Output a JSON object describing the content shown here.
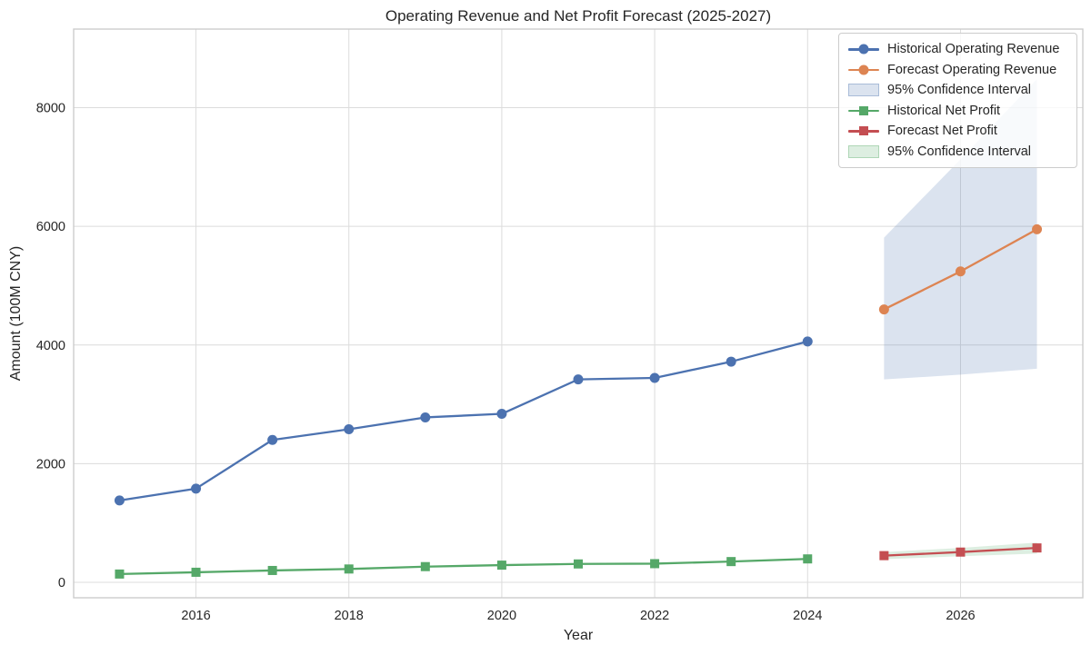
{
  "chart_data": {
    "type": "line",
    "title": "Operating Revenue and Net Profit Forecast (2025-2027)",
    "xlabel": "Year",
    "ylabel": "Amount (100M CNY)",
    "x_ticks": [
      "2016",
      "2018",
      "2020",
      "2022",
      "2024",
      "2026"
    ],
    "x_tick_values": [
      2016,
      2018,
      2020,
      2022,
      2024,
      2026
    ],
    "y_ticks": [
      "0",
      "2000",
      "4000",
      "6000",
      "8000"
    ],
    "y_tick_values": [
      0,
      2000,
      4000,
      6000,
      8000
    ],
    "xlim": [
      2014.4,
      2027.6
    ],
    "ylim": [
      -260,
      9325
    ],
    "grid": true,
    "legend_position": "upper right",
    "colors": {
      "background": "#ffffff",
      "grid": "#dcdcdc",
      "spine": "#c9c9c9",
      "text": "#262626",
      "blue": "#4C72B0",
      "orange": "#DD8452",
      "green": "#55A868",
      "red": "#C44E52"
    },
    "series": [
      {
        "name": "Historical Operating Revenue",
        "kind": "line",
        "marker": "circle",
        "color": "#4C72B0",
        "x": [
          2015,
          2016,
          2017,
          2018,
          2019,
          2020,
          2021,
          2022,
          2023,
          2024
        ],
        "values": [
          1380,
          1580,
          2400,
          2580,
          2780,
          2840,
          3420,
          3445,
          3720,
          4060
        ]
      },
      {
        "name": "Forecast Operating Revenue",
        "kind": "line",
        "marker": "circle",
        "color": "#DD8452",
        "x": [
          2025,
          2026,
          2027
        ],
        "values": [
          4600,
          5240,
          5950
        ]
      },
      {
        "name": "95% Confidence Interval",
        "kind": "band",
        "color": "#4C72B0",
        "fill_opacity": 0.2,
        "x": [
          2025,
          2026,
          2027
        ],
        "lower": [
          3420,
          3500,
          3600
        ],
        "upper": [
          5810,
          7130,
          8480
        ]
      },
      {
        "name": "Historical Net Profit",
        "kind": "line",
        "marker": "square",
        "color": "#55A868",
        "x": [
          2015,
          2016,
          2017,
          2018,
          2019,
          2020,
          2021,
          2022,
          2023,
          2024
        ],
        "values": [
          140,
          170,
          200,
          225,
          265,
          290,
          310,
          315,
          350,
          395
        ]
      },
      {
        "name": "Forecast Net Profit",
        "kind": "line",
        "marker": "square",
        "color": "#C44E52",
        "x": [
          2025,
          2026,
          2027
        ],
        "values": [
          450,
          510,
          580
        ]
      },
      {
        "name": "95% Confidence Interval",
        "kind": "band",
        "color": "#55A868",
        "fill_opacity": 0.2,
        "x": [
          2025,
          2026,
          2027
        ],
        "lower": [
          390,
          440,
          485
        ],
        "upper": [
          510,
          580,
          670
        ]
      }
    ]
  }
}
